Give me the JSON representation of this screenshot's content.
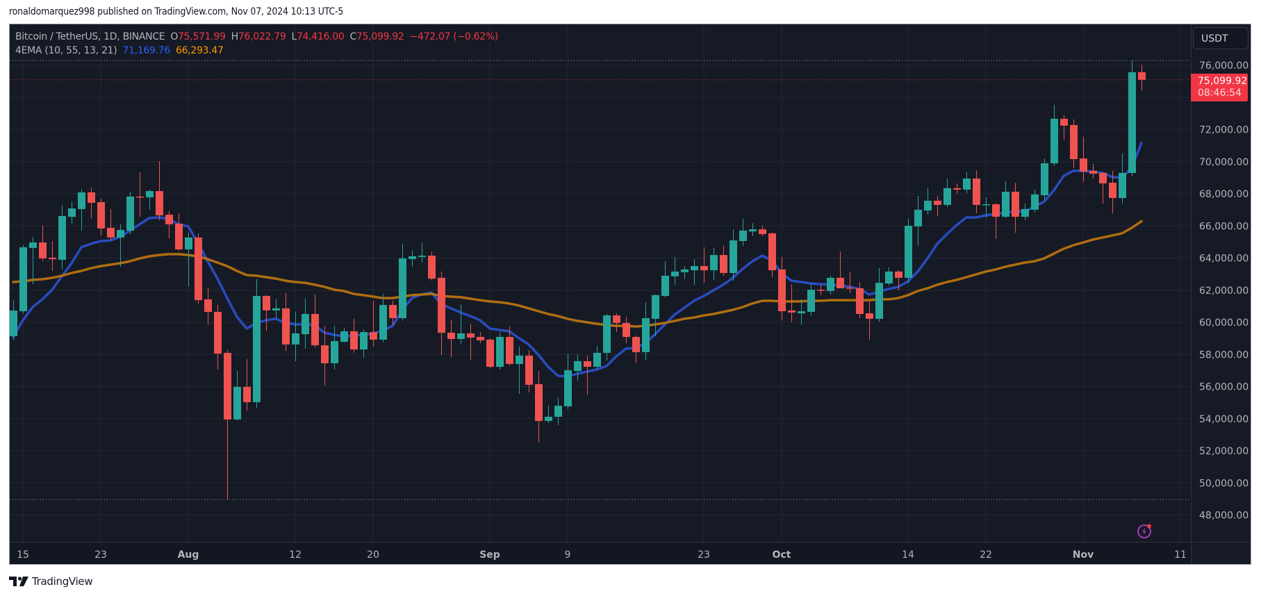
{
  "header": {
    "publisher_line": "ronaldomarquez998 published on TradingView.com, Nov 07, 2024 10:13 UTC-5"
  },
  "legend": {
    "symbol": "Bitcoin / TetherUS, 1D, BINANCE",
    "open_label": "O",
    "open": "75,571.99",
    "high_label": "H",
    "high": "76,022.79",
    "low_label": "L",
    "low": "74,416.00",
    "close_label": "C",
    "close": "75,099.92",
    "change": "−472.07 (−0.62%)",
    "indicator_name": "4EMA (10, 55, 13, 21)",
    "ema_fast_value": "71,169.76",
    "ema_slow_value": "66,293.47"
  },
  "price_axis": {
    "currency_button": "USDT",
    "current_price": "75,099.92",
    "countdown": "08:46:54"
  },
  "footer": {
    "brand": "TradingView"
  },
  "colors": {
    "background": "#161a25",
    "grid": "#232734",
    "up": "#26a69a",
    "down": "#ef5350",
    "ema_fast": "#2a4fc7",
    "ema_slow": "#b8730f",
    "axis_text": "#b2b5be",
    "price_tag": "#f23645",
    "bolt": "#a43cc0"
  },
  "chart_data": {
    "type": "candlestick",
    "title": "Bitcoin / TetherUS, 1D, BINANCE",
    "xlabel": "",
    "ylabel": "USDT",
    "ylim": [
      47000,
      76800
    ],
    "grid": true,
    "y_ticks": [
      "76,000.00",
      "72,000.00",
      "70,000.00",
      "68,000.00",
      "66,000.00",
      "64,000.00",
      "62,000.00",
      "60,000.00",
      "58,000.00",
      "56,000.00",
      "54,000.00",
      "52,000.00",
      "50,000.00",
      "48,000.00"
    ],
    "y_tick_values": [
      76000,
      72000,
      70000,
      68000,
      66000,
      64000,
      62000,
      60000,
      58000,
      56000,
      54000,
      52000,
      50000,
      48000
    ],
    "x_ticks": [
      {
        "label": "15",
        "day": 1,
        "bold": false
      },
      {
        "label": "23",
        "day": 9,
        "bold": false
      },
      {
        "label": "Aug",
        "day": 18,
        "bold": true
      },
      {
        "label": "12",
        "day": 29,
        "bold": false
      },
      {
        "label": "20",
        "day": 37,
        "bold": false
      },
      {
        "label": "Sep",
        "day": 49,
        "bold": true
      },
      {
        "label": "9",
        "day": 57,
        "bold": false
      },
      {
        "label": "23",
        "day": 71,
        "bold": false
      },
      {
        "label": "Oct",
        "day": 79,
        "bold": true
      },
      {
        "label": "14",
        "day": 92,
        "bold": false
      },
      {
        "label": "22",
        "day": 100,
        "bold": false
      },
      {
        "label": "Nov",
        "day": 110,
        "bold": true
      },
      {
        "label": "11",
        "day": 120,
        "bold": false
      }
    ],
    "start_date": "2024-07-14",
    "ohlc": [
      [
        59135,
        61380,
        58900,
        60735
      ],
      [
        60690,
        64800,
        60560,
        64670
      ],
      [
        64630,
        65320,
        62380,
        64970
      ],
      [
        64970,
        66050,
        63800,
        63980
      ],
      [
        64020,
        65060,
        63200,
        63930
      ],
      [
        63890,
        67300,
        63290,
        66620
      ],
      [
        66570,
        67520,
        66140,
        67090
      ],
      [
        67050,
        68300,
        65710,
        68090
      ],
      [
        68090,
        68390,
        66490,
        67440
      ],
      [
        67480,
        67700,
        65400,
        65840
      ],
      [
        65880,
        67050,
        65100,
        65280
      ],
      [
        65280,
        66100,
        63460,
        65750
      ],
      [
        65710,
        68130,
        65500,
        67830
      ],
      [
        67830,
        69340,
        66570,
        67820
      ],
      [
        67780,
        68260,
        67010,
        68170
      ],
      [
        68170,
        70030,
        66360,
        66660
      ],
      [
        66700,
        66920,
        65230,
        66100
      ],
      [
        66140,
        66790,
        64450,
        64540
      ],
      [
        64540,
        65580,
        62250,
        65280
      ],
      [
        65280,
        65540,
        61170,
        61380
      ],
      [
        61430,
        62160,
        59830,
        60650
      ],
      [
        60650,
        61080,
        57060,
        58050
      ],
      [
        58100,
        58270,
        48970,
        53950
      ],
      [
        53950,
        56970,
        53900,
        55980
      ],
      [
        55980,
        57710,
        54510,
        55030
      ],
      [
        55030,
        62680,
        54680,
        61640
      ],
      [
        61640,
        61690,
        59480,
        60740
      ],
      [
        60740,
        61430,
        60220,
        60870
      ],
      [
        60870,
        61820,
        58230,
        58620
      ],
      [
        58620,
        60650,
        57580,
        59310
      ],
      [
        59260,
        61510,
        58360,
        60520
      ],
      [
        60520,
        61730,
        58440,
        58570
      ],
      [
        58570,
        59780,
        56070,
        57450
      ],
      [
        57450,
        59780,
        57060,
        58830
      ],
      [
        58790,
        59650,
        58750,
        59440
      ],
      [
        59440,
        60220,
        58100,
        58310
      ],
      [
        58310,
        59570,
        57790,
        59390
      ],
      [
        59390,
        61340,
        58490,
        58920
      ],
      [
        58920,
        61770,
        58750,
        61080
      ],
      [
        61080,
        61340,
        59830,
        60260
      ],
      [
        60260,
        64890,
        60100,
        63980
      ],
      [
        63940,
        64460,
        63460,
        64110
      ],
      [
        64070,
        64930,
        63720,
        64150
      ],
      [
        64150,
        64410,
        62600,
        62720
      ],
      [
        62770,
        63160,
        57970,
        59350
      ],
      [
        59350,
        60170,
        57840,
        58960
      ],
      [
        58960,
        61120,
        58660,
        59310
      ],
      [
        59310,
        59910,
        57660,
        59050
      ],
      [
        59090,
        59390,
        58700,
        58880
      ],
      [
        58920,
        59010,
        57150,
        57230
      ],
      [
        57230,
        59390,
        57060,
        59090
      ],
      [
        59090,
        59740,
        57300,
        57410
      ],
      [
        57410,
        58490,
        55550,
        57930
      ],
      [
        57930,
        58270,
        55630,
        56110
      ],
      [
        56150,
        56970,
        52520,
        53860
      ],
      [
        53860,
        54810,
        53730,
        54120
      ],
      [
        54120,
        55290,
        53600,
        54810
      ],
      [
        54770,
        58050,
        54600,
        57020
      ],
      [
        56970,
        58010,
        56370,
        57580
      ],
      [
        57580,
        57930,
        55500,
        57230
      ],
      [
        57230,
        58530,
        57100,
        58100
      ],
      [
        58100,
        60520,
        57620,
        60430
      ],
      [
        60430,
        60560,
        59390,
        59960
      ],
      [
        59960,
        60350,
        58700,
        59090
      ],
      [
        59090,
        59180,
        57450,
        58140
      ],
      [
        58140,
        61250,
        57620,
        60260
      ],
      [
        60220,
        61730,
        59140,
        61690
      ],
      [
        61640,
        63800,
        61560,
        62900
      ],
      [
        62860,
        64070,
        62340,
        63160
      ],
      [
        63120,
        63500,
        62680,
        63290
      ],
      [
        63240,
        63930,
        62340,
        63500
      ],
      [
        63500,
        64670,
        62460,
        63240
      ],
      [
        63240,
        64630,
        62640,
        64190
      ],
      [
        64190,
        64760,
        62900,
        63070
      ],
      [
        63070,
        65790,
        62590,
        65100
      ],
      [
        65060,
        66440,
        64760,
        65710
      ],
      [
        65660,
        66180,
        65360,
        65790
      ],
      [
        65790,
        66010,
        65360,
        65490
      ],
      [
        65540,
        65580,
        62810,
        63240
      ],
      [
        63290,
        64070,
        60130,
        60690
      ],
      [
        60740,
        62340,
        60000,
        60610
      ],
      [
        60560,
        61430,
        59830,
        60690
      ],
      [
        60650,
        62420,
        60430,
        62030
      ],
      [
        62030,
        62340,
        61690,
        61990
      ],
      [
        61950,
        62900,
        61730,
        62770
      ],
      [
        62770,
        64410,
        62120,
        62120
      ],
      [
        62160,
        63160,
        61820,
        62120
      ],
      [
        62120,
        62510,
        60260,
        60520
      ],
      [
        60560,
        61300,
        58920,
        60220
      ],
      [
        60220,
        63370,
        60040,
        62460
      ],
      [
        62420,
        63420,
        62300,
        63160
      ],
      [
        63160,
        63240,
        61990,
        62770
      ],
      [
        62770,
        66440,
        62420,
        66010
      ],
      [
        65970,
        67870,
        64760,
        67010
      ],
      [
        66960,
        68350,
        66700,
        67570
      ],
      [
        67570,
        67870,
        66620,
        67310
      ],
      [
        67310,
        68950,
        67180,
        68350
      ],
      [
        68350,
        68650,
        68000,
        68260
      ],
      [
        68260,
        69340,
        68040,
        68950
      ],
      [
        68950,
        69470,
        66790,
        67310
      ],
      [
        67310,
        67790,
        66530,
        67350
      ],
      [
        67350,
        67400,
        65190,
        66570
      ],
      [
        66570,
        68780,
        66490,
        68130
      ],
      [
        68130,
        68690,
        65580,
        66570
      ],
      [
        66570,
        67400,
        66360,
        67050
      ],
      [
        67010,
        68260,
        66830,
        67960
      ],
      [
        67910,
        70200,
        67610,
        69900
      ],
      [
        69900,
        73540,
        69730,
        72670
      ],
      [
        72670,
        72890,
        71370,
        72240
      ],
      [
        72280,
        72630,
        69600,
        70160
      ],
      [
        70200,
        71550,
        68740,
        69380
      ],
      [
        69430,
        69860,
        68950,
        69250
      ],
      [
        69300,
        69340,
        67400,
        68650
      ],
      [
        68690,
        69430,
        66790,
        67740
      ],
      [
        67740,
        70510,
        67400,
        69300
      ],
      [
        69300,
        76300,
        69100,
        75570
      ],
      [
        75571.99,
        76022.79,
        74416.0,
        75099.92
      ]
    ],
    "series": [
      {
        "name": "EMA 10",
        "color": "#2a4fc7",
        "values": [
          59090,
          60130,
          60950,
          61430,
          62030,
          62860,
          63680,
          64670,
          64890,
          65060,
          65100,
          65320,
          65710,
          66100,
          66490,
          66530,
          66440,
          66100,
          65970,
          64930,
          63800,
          62720,
          61510,
          60350,
          59610,
          59960,
          60130,
          60220,
          59960,
          59870,
          59870,
          59830,
          59350,
          59220,
          59130,
          59180,
          59220,
          59310,
          59480,
          59780,
          60780,
          61510,
          61730,
          61860,
          61120,
          60870,
          60610,
          60390,
          60130,
          59610,
          59520,
          59440,
          59010,
          58620,
          57970,
          57230,
          56670,
          56630,
          56800,
          56930,
          57060,
          57280,
          57880,
          58360,
          58400,
          58700,
          59260,
          59870,
          60480,
          60910,
          61340,
          61640,
          61990,
          62340,
          62770,
          63330,
          63800,
          64150,
          63850,
          63070,
          62590,
          62510,
          62420,
          62380,
          62340,
          62290,
          62210,
          62080,
          61730,
          61900,
          62080,
          62210,
          62550,
          63160,
          63980,
          64890,
          65490,
          66060,
          66530,
          66530,
          66660,
          66750,
          66830,
          66880,
          66920,
          67180,
          67520,
          68220,
          69120,
          69430,
          69430,
          69380,
          69300,
          69040,
          69000,
          69640,
          71169.76
        ]
      },
      {
        "name": "EMA 55",
        "color": "#b8730f",
        "values": [
          62510,
          62550,
          62640,
          62680,
          62770,
          62900,
          63070,
          63200,
          63370,
          63500,
          63590,
          63680,
          63800,
          63980,
          64110,
          64190,
          64240,
          64240,
          64190,
          64110,
          63930,
          63720,
          63500,
          63200,
          62940,
          62900,
          62810,
          62720,
          62590,
          62510,
          62460,
          62340,
          62210,
          62030,
          61950,
          61770,
          61690,
          61600,
          61510,
          61510,
          61600,
          61690,
          61730,
          61770,
          61640,
          61600,
          61560,
          61470,
          61380,
          61300,
          61250,
          61170,
          61040,
          60870,
          60690,
          60520,
          60390,
          60220,
          60090,
          60000,
          59910,
          59830,
          59780,
          59780,
          59740,
          59780,
          59870,
          59960,
          60090,
          60220,
          60300,
          60430,
          60520,
          60650,
          60780,
          60950,
          61170,
          61340,
          61340,
          61300,
          61300,
          61300,
          61340,
          61340,
          61380,
          61380,
          61380,
          61380,
          61380,
          61430,
          61430,
          61510,
          61690,
          61950,
          62120,
          62340,
          62510,
          62640,
          62810,
          62990,
          63160,
          63290,
          63460,
          63590,
          63720,
          63800,
          63980,
          64280,
          64580,
          64800,
          64970,
          65150,
          65280,
          65410,
          65540,
          65880,
          66293.47
        ]
      }
    ],
    "reference_lines": {
      "range_high": 76300,
      "range_low": 48970,
      "current_price": 75099.92
    }
  }
}
